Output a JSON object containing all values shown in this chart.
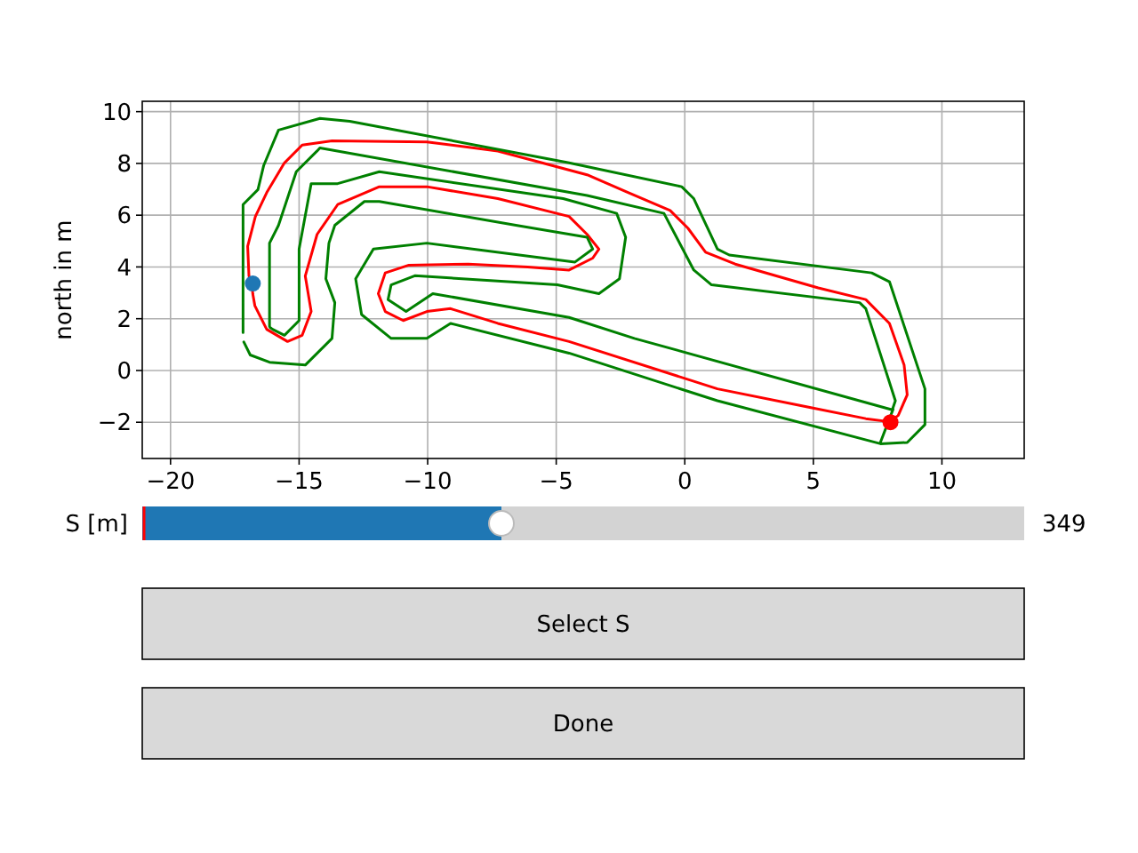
{
  "chart_data": {
    "type": "line",
    "ylabel": "north in m",
    "xlim": [
      -21.1,
      13.2
    ],
    "ylim": [
      -3.4,
      10.4
    ],
    "xticks": [
      -20,
      -15,
      -10,
      -5,
      0,
      5,
      10
    ],
    "yticks": [
      -2,
      0,
      2,
      4,
      6,
      8,
      10
    ],
    "grid": true,
    "line_style": "solid",
    "annotations": [
      "S [m]",
      "349",
      "Select S",
      "Done"
    ],
    "series": [
      {
        "color": "#ff0000",
        "x": [
          -16.8,
          -16.95,
          -17.0,
          -16.7,
          -16.26,
          -15.57,
          -14.88,
          -13.72,
          -10.03,
          -7.27,
          -3.8,
          -2.19,
          -0.57,
          0.12,
          0.81,
          1.96,
          5.19,
          7.04,
          7.96,
          8.53,
          8.65,
          8.3,
          7.96,
          7.04,
          4.73,
          1.27,
          -4.5,
          -7.27,
          -9.11,
          -10.03,
          -10.95,
          -11.65,
          -11.92,
          -11.65,
          -10.73,
          -8.42,
          -6.11,
          -4.5,
          -3.58,
          -3.34,
          -3.8,
          -4.5,
          -7.27,
          -10.03,
          -11.88,
          -13.5,
          -14.3,
          -14.76,
          -14.53,
          -14.88,
          -15.45,
          -16.26,
          -16.72,
          -16.8,
          -16.83
        ],
        "values": [
          3.36,
          3.65,
          4.8,
          5.95,
          6.87,
          8.02,
          8.71,
          8.87,
          8.83,
          8.48,
          7.56,
          6.87,
          6.18,
          5.5,
          4.57,
          4.11,
          3.19,
          2.74,
          1.82,
          0.21,
          -0.94,
          -1.74,
          -1.98,
          -1.86,
          -1.4,
          -0.71,
          1.12,
          1.82,
          2.39,
          2.28,
          1.93,
          2.28,
          2.97,
          3.77,
          4.07,
          4.11,
          4.0,
          3.88,
          4.34,
          4.69,
          5.26,
          5.95,
          6.64,
          7.1,
          7.1,
          6.41,
          5.26,
          3.65,
          2.28,
          1.36,
          1.12,
          1.59,
          2.5,
          2.95,
          3.3
        ]
      },
      {
        "color": "#008000",
        "x": [
          -17.18,
          -17.18,
          -16.6,
          -16.38,
          -15.8,
          -14.19,
          -13.03,
          -4.5,
          -0.12,
          0.35,
          1.27,
          1.73,
          7.27,
          7.96,
          9.34,
          9.34,
          8.65,
          7.61,
          1.27,
          -4.5,
          -9.11,
          -10.03,
          -11.42,
          -12.57,
          -12.8,
          -12.11,
          -10.03,
          -4.27,
          -3.58,
          -3.8,
          -6.57,
          -11.88,
          -12.46,
          -13.61,
          -13.84,
          -13.96,
          -13.61,
          -13.72,
          -14.76,
          -16.15,
          -16.9,
          -17.15
        ],
        "values": [
          1.47,
          6.41,
          6.99,
          7.91,
          9.29,
          9.74,
          9.63,
          8.02,
          7.1,
          6.64,
          4.69,
          4.46,
          3.77,
          3.43,
          -0.71,
          -2.09,
          -2.78,
          -2.83,
          -1.17,
          0.67,
          1.82,
          1.24,
          1.24,
          2.16,
          3.54,
          4.69,
          4.92,
          4.19,
          4.69,
          5.15,
          5.61,
          6.53,
          6.53,
          5.61,
          4.92,
          3.54,
          2.62,
          1.24,
          0.21,
          0.32,
          0.6,
          1.1
        ]
      },
      {
        "color": "#008000",
        "x": [
          -16.15,
          -16.15,
          -15.8,
          -15.11,
          -14.3,
          -14.19,
          -3.8,
          -0.81,
          0.35,
          1.04,
          6.8,
          7.04,
          8.19,
          8.07,
          -1.96,
          -4.5,
          -9.8,
          -10.84,
          -11.54,
          -11.42,
          -10.5,
          -4.96,
          -3.34,
          -2.54,
          -2.3,
          -2.65,
          -4.73,
          -11.88,
          -13.5,
          -14.53,
          -15.0,
          -15.0,
          -15.0,
          -15.0,
          -15.57,
          -16.03,
          -16.13
        ],
        "values": [
          1.7,
          4.92,
          5.61,
          7.68,
          8.48,
          8.6,
          6.76,
          6.07,
          3.88,
          3.31,
          2.62,
          2.39,
          -1.17,
          -1.52,
          1.24,
          2.05,
          2.97,
          2.28,
          2.74,
          3.31,
          3.66,
          3.31,
          2.97,
          3.54,
          5.15,
          6.07,
          6.64,
          7.68,
          7.22,
          7.22,
          4.69,
          3.77,
          2.62,
          1.93,
          1.36,
          1.59,
          1.66
        ]
      },
      {
        "color": "#008000",
        "x": [
          7.6,
          8.1
        ],
        "values": [
          -2.8,
          -1.5
        ]
      },
      {
        "type": "scatter",
        "color": "#1f77b4",
        "x": [
          -16.8
        ],
        "values": [
          3.36
        ]
      },
      {
        "type": "scatter",
        "color": "#ff0000",
        "x": [
          8.0
        ],
        "values": [
          -2.0
        ]
      }
    ]
  }
}
